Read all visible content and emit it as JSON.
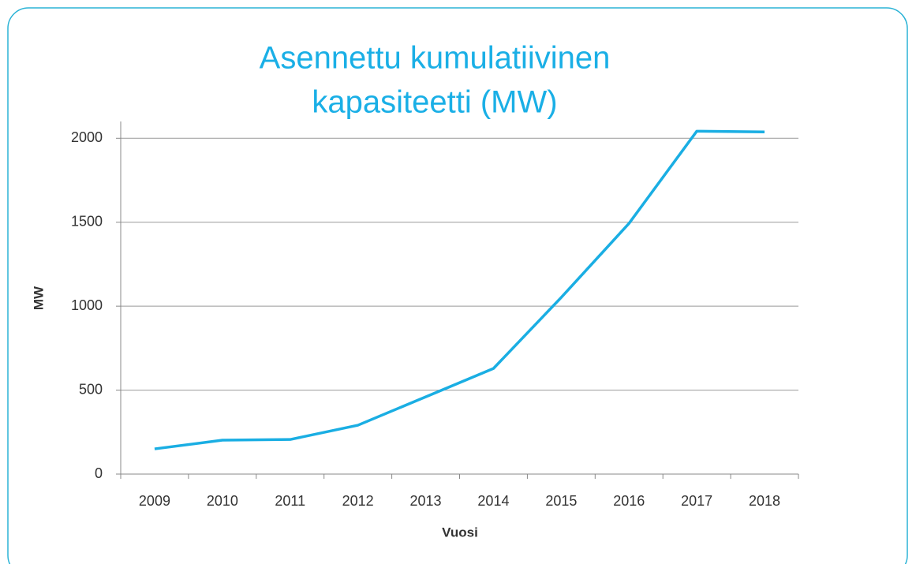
{
  "chart_data": {
    "type": "line",
    "title": [
      "Asennettu kumulatiivinen",
      "kapasiteetti (MW)"
    ],
    "x_label": "Vuosi",
    "y_label": "MW",
    "categories": [
      "2009",
      "2010",
      "2011",
      "2012",
      "2013",
      "2014",
      "2015",
      "2016",
      "2017",
      "2018"
    ],
    "series": [
      {
        "name": "MW",
        "color": "#1aaee3",
        "values": [
          150,
          202,
          206,
          291,
          460,
          629,
          1052,
          1493,
          2042,
          2038
        ]
      }
    ],
    "ylim": [
      0,
      2100
    ],
    "yticks": [
      0,
      500,
      1000,
      1500,
      2000
    ],
    "grid": true
  }
}
